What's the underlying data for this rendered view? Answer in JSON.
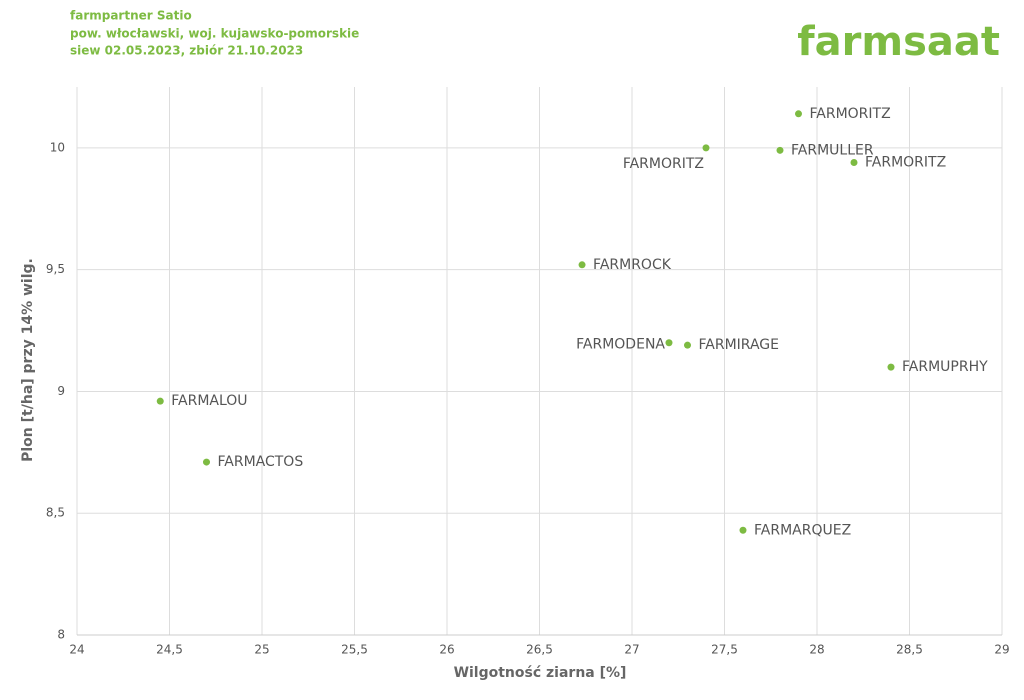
{
  "header": {
    "lines": [
      "farmpartner Satio",
      "pow. włocławski, woj. kujawsko-pomorskie",
      "siew 02.05.2023, zbiór 21.10.2023"
    ],
    "logo": "farmsaat"
  },
  "chart_data": {
    "type": "scatter",
    "x_label": "Wilgotność ziarna [%]",
    "y_label": "Plon [t/ha] przy 14% wilg.",
    "color": "#7dbb42",
    "point_labels": [
      "FARMORITZ",
      "FARMORITZ",
      "FARMULLER",
      "FARMORITZ",
      "FARMROCK",
      "FARMODENA",
      "FARMIRAGE",
      "FARMUPRHY",
      "FARMALOU",
      "FARMACTOS",
      "FARMARQUEZ"
    ],
    "x": [
      27.9,
      27.4,
      27.8,
      28.2,
      26.73,
      27.2,
      27.3,
      28.4,
      24.45,
      24.7,
      27.6
    ],
    "values": [
      10.14,
      10.0,
      9.99,
      9.94,
      9.52,
      9.2,
      9.19,
      9.1,
      8.96,
      8.71,
      8.43
    ],
    "xlim": [
      24,
      29
    ],
    "ylim": [
      8,
      10.25
    ],
    "xticks": [
      24,
      {
        "value": 24.5,
        "label": "24,5"
      },
      25,
      {
        "value": 25.5,
        "label": "25,5"
      },
      26,
      {
        "value": 26.5,
        "label": "26,5"
      },
      27,
      {
        "value": 27.5,
        "label": "27,5"
      },
      28,
      {
        "value": 28.5,
        "label": "28,5"
      },
      29
    ],
    "yticks": [
      8,
      {
        "value": 8.5,
        "label": "8,5"
      },
      9,
      {
        "value": 9.5,
        "label": "9,5"
      },
      10
    ],
    "grid": true
  }
}
